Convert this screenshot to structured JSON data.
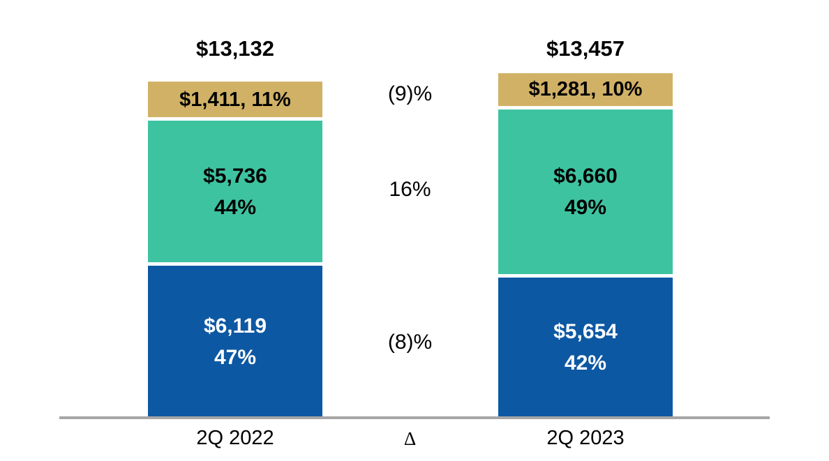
{
  "chart_data": {
    "type": "bar",
    "stacked": true,
    "title": "",
    "categories": [
      "2Q 2022",
      "2Q 2023"
    ],
    "delta_column_label": "Δ",
    "axis_line_color": "#a6a6a6",
    "colors": {
      "gold": "#d1b166",
      "teal": "#3ec3a1",
      "blue": "#0d58a3"
    },
    "bars": [
      {
        "category": "2Q 2022",
        "total_label": "$13,132",
        "total": 13132,
        "segments": [
          {
            "name": "gold-top",
            "value": 1411,
            "pct": 11,
            "label": "$1,411, 11%",
            "color": "#d1b166",
            "text_color": "#000000"
          },
          {
            "name": "teal-middle",
            "value": 5736,
            "pct": 44,
            "label_value": "$5,736",
            "label_pct": "44%",
            "color": "#3ec3a1",
            "text_color": "#000000"
          },
          {
            "name": "blue-bottom",
            "value": 6119,
            "pct": 47,
            "label_value": "$6,119",
            "label_pct": "47%",
            "color": "#0d58a3",
            "text_color": "#ffffff"
          }
        ]
      },
      {
        "category": "2Q 2023",
        "total_label": "$13,457",
        "total": 13457,
        "segments": [
          {
            "name": "gold-top",
            "value": 1281,
            "pct": 10,
            "label": "$1,281, 10%",
            "color": "#d1b166",
            "text_color": "#000000"
          },
          {
            "name": "teal-middle",
            "value": 6660,
            "pct": 49,
            "label_value": "$6,660",
            "label_pct": "49%",
            "color": "#3ec3a1",
            "text_color": "#000000"
          },
          {
            "name": "blue-bottom",
            "value": 5654,
            "pct": 42,
            "label_value": "$5,654",
            "label_pct": "42%",
            "color": "#0d58a3",
            "text_color": "#ffffff"
          }
        ]
      }
    ],
    "deltas": [
      {
        "label": "(9)%",
        "value_pct": -9
      },
      {
        "label": "16%",
        "value_pct": 16
      },
      {
        "label": "(8)%",
        "value_pct": -8
      }
    ]
  }
}
